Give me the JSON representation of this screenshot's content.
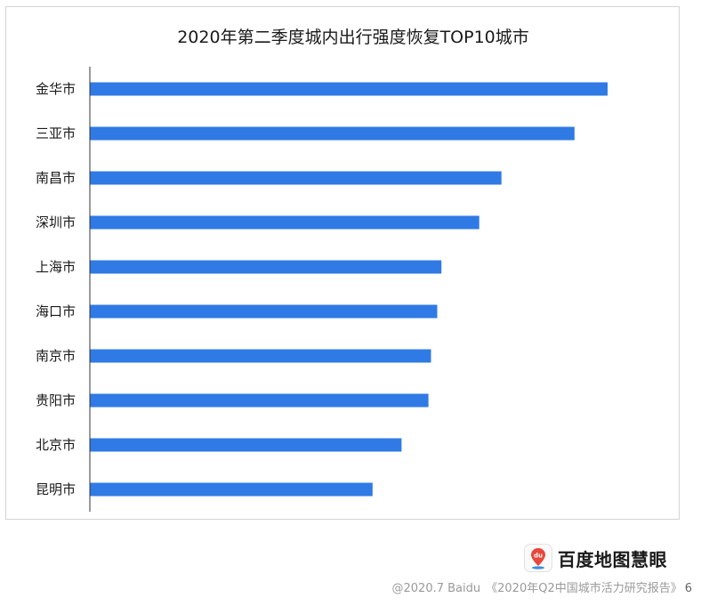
{
  "chart_data": {
    "type": "bar",
    "orientation": "horizontal",
    "title": "2020年第二季度城内出行强度恢复TOP10城市",
    "xlabel": "",
    "ylabel": "",
    "categories": [
      "金华市",
      "三亚市",
      "南昌市",
      "深圳市",
      "上海市",
      "海口市",
      "南京市",
      "贵阳市",
      "北京市",
      "昆明市"
    ],
    "values": [
      100,
      93.6,
      79.5,
      75.2,
      67.9,
      67.1,
      65.9,
      65.4,
      60.2,
      54.6
    ],
    "value_unit": "relative (unlabeled axis)",
    "xlim": [
      0,
      100
    ],
    "grid": false,
    "legend": "none",
    "bar_color": "#2f7ae5"
  },
  "branding": {
    "logo_text": "du",
    "name": "百度地图慧眼"
  },
  "footer": {
    "copyright": "@2020.7 Baidu",
    "report": "《2020年Q2中国城市活力研究报告》",
    "page_number": "6"
  },
  "colors": {
    "bar": "#2f7ae5",
    "axis": "#333333",
    "frame_border": "#d4d4d4",
    "footer_text": "#9a9a9a",
    "logo_pin": "#e8473b"
  }
}
